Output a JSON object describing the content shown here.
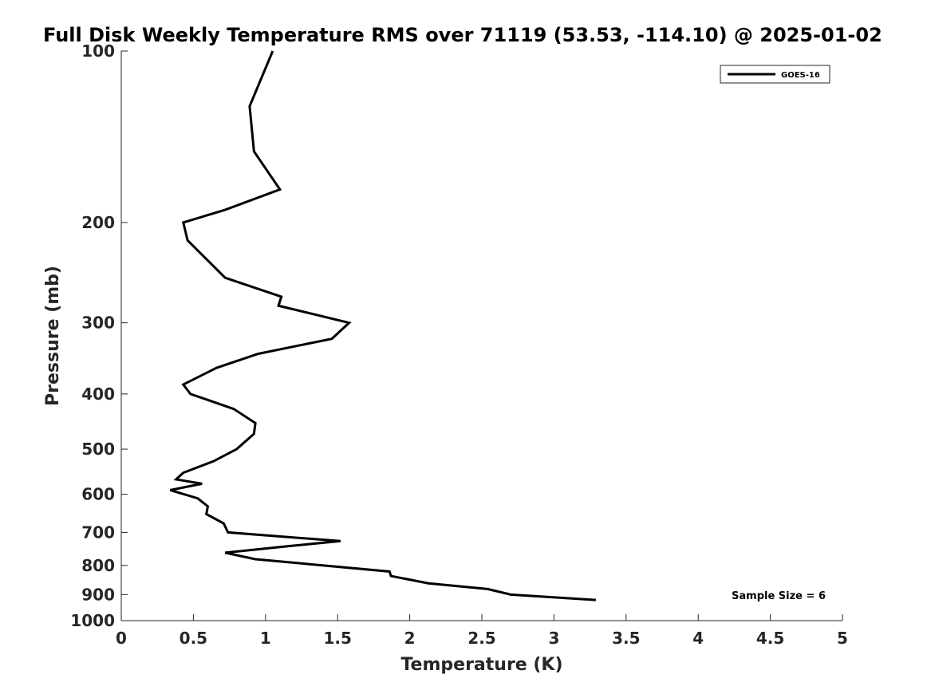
{
  "chart_data": {
    "type": "line",
    "title": "Full Disk Weekly Temperature RMS over 71119 (53.53, -114.10) @ 2025-01-02",
    "xlabel": "Temperature (K)",
    "ylabel": "Pressure (mb)",
    "xlim": [
      0,
      5
    ],
    "ylim": [
      100,
      1000
    ],
    "yscale": "log",
    "y_reversed": true,
    "xticks": [
      "0",
      "0.5",
      "1",
      "1.5",
      "2",
      "2.5",
      "3",
      "3.5",
      "4",
      "4.5",
      "5"
    ],
    "yticks": [
      "100",
      "200",
      "300",
      "400",
      "500",
      "600",
      "700",
      "800",
      "900",
      "1000"
    ],
    "grid": false,
    "legend_position": "top-right",
    "annotation": "Sample Size = 6",
    "series": [
      {
        "name": "GOES-16",
        "color": "#000000",
        "points": [
          [
            1.05,
            100
          ],
          [
            0.89,
            125
          ],
          [
            0.92,
            150
          ],
          [
            1.1,
            175
          ],
          [
            0.72,
            190
          ],
          [
            0.43,
            200
          ],
          [
            0.46,
            215
          ],
          [
            0.72,
            250
          ],
          [
            1.11,
            270
          ],
          [
            1.09,
            280
          ],
          [
            1.58,
            300
          ],
          [
            1.46,
            320
          ],
          [
            0.95,
            340
          ],
          [
            0.66,
            360
          ],
          [
            0.43,
            385
          ],
          [
            0.48,
            400
          ],
          [
            0.78,
            425
          ],
          [
            0.93,
            450
          ],
          [
            0.92,
            470
          ],
          [
            0.8,
            500
          ],
          [
            0.64,
            525
          ],
          [
            0.43,
            550
          ],
          [
            0.38,
            565
          ],
          [
            0.56,
            575
          ],
          [
            0.34,
            590
          ],
          [
            0.53,
            610
          ],
          [
            0.6,
            630
          ],
          [
            0.59,
            650
          ],
          [
            0.71,
            675
          ],
          [
            0.74,
            700
          ],
          [
            1.52,
            725
          ],
          [
            1.16,
            740
          ],
          [
            0.72,
            760
          ],
          [
            0.93,
            780
          ],
          [
            1.86,
            820
          ],
          [
            1.87,
            835
          ],
          [
            2.13,
            860
          ],
          [
            2.54,
            880
          ],
          [
            2.7,
            900
          ],
          [
            3.29,
            920
          ]
        ]
      }
    ]
  }
}
